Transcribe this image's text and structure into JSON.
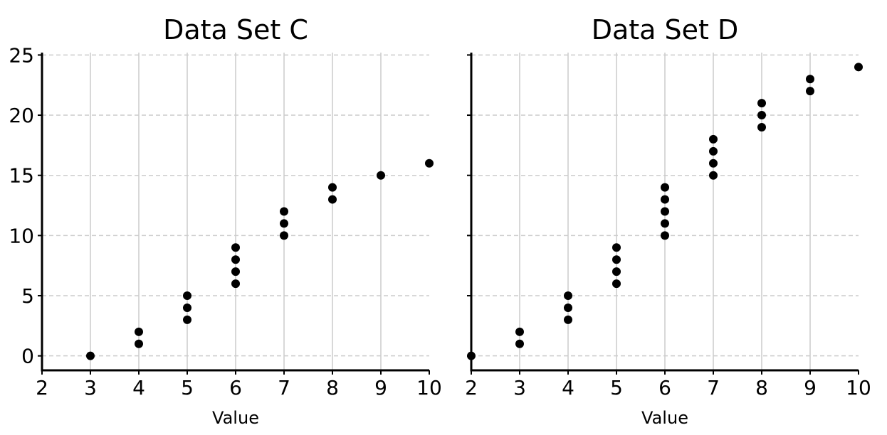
{
  "chart_data": [
    {
      "type": "scatter",
      "title": "Data Set C",
      "xlabel": "Value",
      "ylabel": "",
      "xlim": [
        2,
        10
      ],
      "ylim": [
        -1.2,
        25.2
      ],
      "xticks": [
        2,
        3,
        4,
        5,
        6,
        7,
        8,
        9,
        10
      ],
      "yticks": [
        0,
        5,
        10,
        15,
        20,
        25
      ],
      "vertical_grid": "solid",
      "horizontal_grid": "dashed",
      "show_y_tick_labels": true,
      "marker_color": "#000000",
      "grid_color": "#cccccc",
      "points": [
        {
          "x": 3,
          "y": 0
        },
        {
          "x": 4,
          "y": 1
        },
        {
          "x": 4,
          "y": 2
        },
        {
          "x": 5,
          "y": 3
        },
        {
          "x": 5,
          "y": 4
        },
        {
          "x": 5,
          "y": 5
        },
        {
          "x": 6,
          "y": 6
        },
        {
          "x": 6,
          "y": 7
        },
        {
          "x": 6,
          "y": 8
        },
        {
          "x": 6,
          "y": 9
        },
        {
          "x": 7,
          "y": 10
        },
        {
          "x": 7,
          "y": 11
        },
        {
          "x": 7,
          "y": 12
        },
        {
          "x": 8,
          "y": 13
        },
        {
          "x": 8,
          "y": 14
        },
        {
          "x": 9,
          "y": 15
        },
        {
          "x": 10,
          "y": 16
        }
      ]
    },
    {
      "type": "scatter",
      "title": "Data Set D",
      "xlabel": "Value",
      "ylabel": "",
      "xlim": [
        2,
        10
      ],
      "ylim": [
        -1.2,
        25.2
      ],
      "xticks": [
        2,
        3,
        4,
        5,
        6,
        7,
        8,
        9,
        10
      ],
      "yticks": [
        0,
        5,
        10,
        15,
        20,
        25
      ],
      "vertical_grid": "solid",
      "horizontal_grid": "dashed",
      "show_y_tick_labels": false,
      "marker_color": "#000000",
      "grid_color": "#cccccc",
      "points": [
        {
          "x": 2,
          "y": 0
        },
        {
          "x": 3,
          "y": 1
        },
        {
          "x": 3,
          "y": 2
        },
        {
          "x": 4,
          "y": 3
        },
        {
          "x": 4,
          "y": 4
        },
        {
          "x": 4,
          "y": 5
        },
        {
          "x": 5,
          "y": 6
        },
        {
          "x": 5,
          "y": 7
        },
        {
          "x": 5,
          "y": 8
        },
        {
          "x": 5,
          "y": 9
        },
        {
          "x": 6,
          "y": 10
        },
        {
          "x": 6,
          "y": 11
        },
        {
          "x": 6,
          "y": 12
        },
        {
          "x": 6,
          "y": 13
        },
        {
          "x": 6,
          "y": 14
        },
        {
          "x": 7,
          "y": 15
        },
        {
          "x": 7,
          "y": 16
        },
        {
          "x": 7,
          "y": 17
        },
        {
          "x": 7,
          "y": 18
        },
        {
          "x": 8,
          "y": 19
        },
        {
          "x": 8,
          "y": 20
        },
        {
          "x": 8,
          "y": 21
        },
        {
          "x": 9,
          "y": 22
        },
        {
          "x": 9,
          "y": 23
        },
        {
          "x": 10,
          "y": 24
        }
      ]
    }
  ]
}
